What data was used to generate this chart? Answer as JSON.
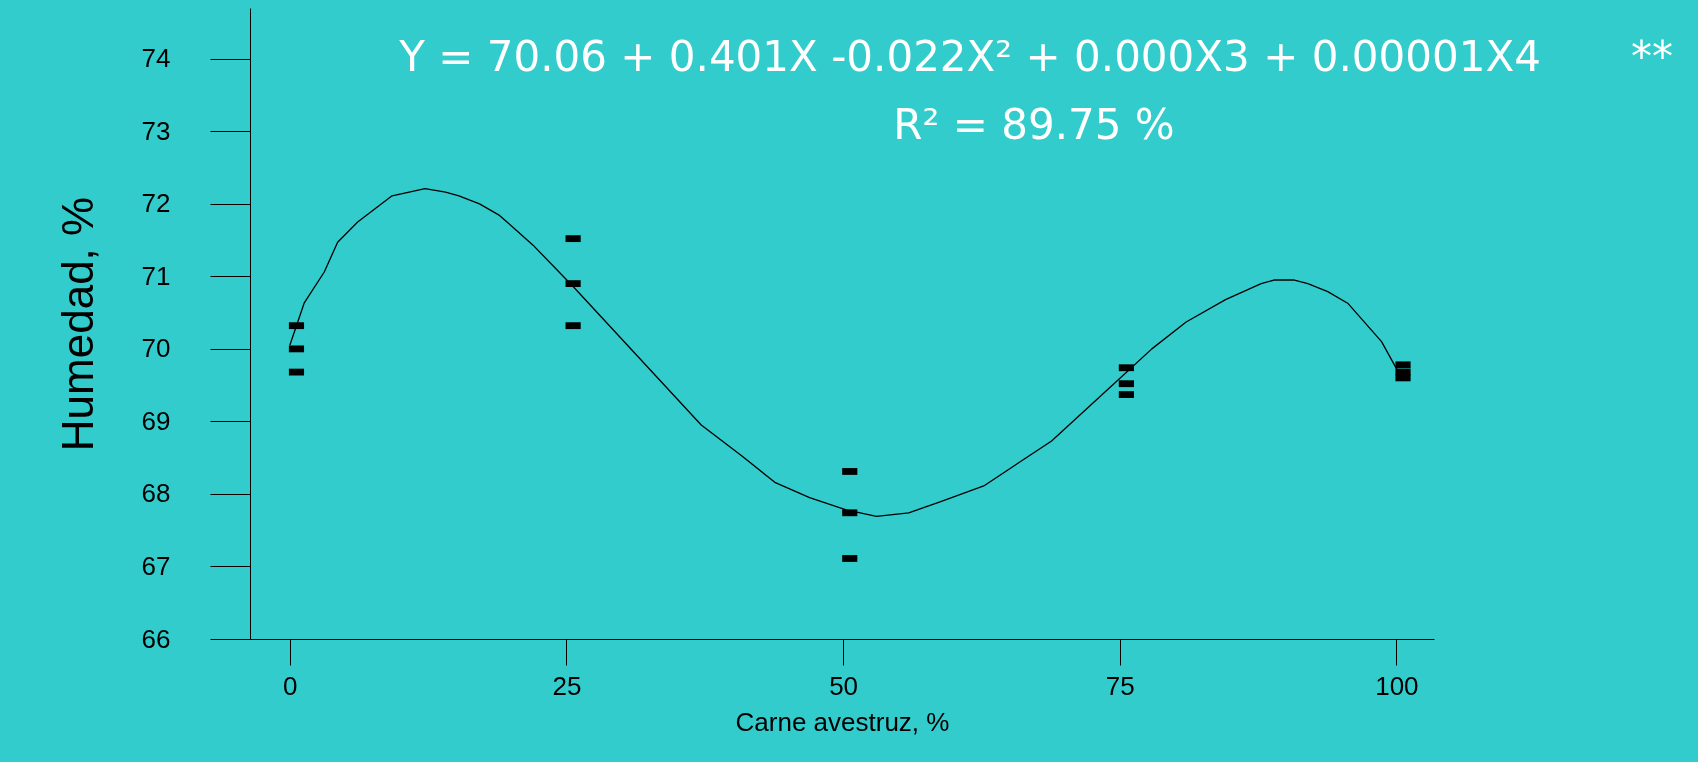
{
  "chart_data": {
    "type": "scatter",
    "xlabel": "Carne avestruz, %",
    "ylabel": "Humedad, %",
    "annotations": [
      "Y = 70.06 + 0.401X -0.022X² + 0.000X3 + 0.00001X4",
      "R² = 89.75 %",
      "**"
    ],
    "xlim": [
      -3.6,
      103.4
    ],
    "ylim": [
      66,
      74.7
    ],
    "xticks": [
      0,
      25,
      50,
      75,
      100
    ],
    "yticks": [
      66,
      67,
      68,
      69,
      70,
      71,
      72,
      73,
      74
    ],
    "grid": false,
    "series": [
      {
        "color": "#000000",
        "marker": "square",
        "x": [
          0.6,
          0.6,
          0.6,
          25.6,
          25.6,
          25.6,
          50.6,
          50.6,
          50.6,
          75.6,
          75.6,
          75.6,
          100.6,
          100.6,
          100.6
        ],
        "values": [
          70.32,
          70.0,
          69.68,
          71.52,
          70.9,
          70.32,
          68.31,
          67.74,
          67.11,
          69.74,
          69.52,
          69.37,
          69.78,
          69.68,
          69.6
        ]
      },
      {
        "type": "line",
        "color": "#000000",
        "line_style": "solid",
        "x": [
          0,
          1.29,
          3.11,
          4.32,
          6.13,
          9.24,
          12.22,
          14.07,
          15.28,
          17.14,
          18.95,
          21.98,
          25.6,
          37.18,
          40.8,
          43.83,
          46.97,
          50.28,
          53.02,
          55.93,
          58.76,
          62.71,
          68.84,
          75.56,
          77.9,
          81.0,
          84.56,
          87.78,
          89.0,
          90.7,
          92.0,
          93.8,
          95.6,
          98.66,
          100.07
        ],
        "values": [
          70.05,
          70.63,
          71.06,
          71.47,
          71.75,
          72.11,
          72.21,
          72.16,
          72.11,
          72.0,
          71.84,
          71.43,
          70.86,
          68.95,
          68.53,
          68.16,
          67.95,
          67.78,
          67.69,
          67.74,
          67.89,
          68.11,
          68.73,
          69.67,
          70.0,
          70.37,
          70.68,
          70.9,
          70.95,
          70.95,
          70.9,
          70.79,
          70.63,
          70.1,
          69.71
        ]
      }
    ]
  }
}
